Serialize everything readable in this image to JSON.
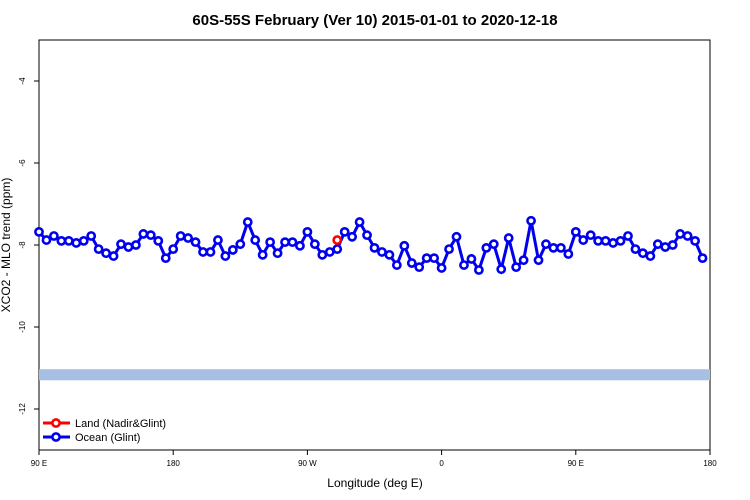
{
  "chart_data": {
    "type": "line",
    "title": "60S-55S February (Ver 10)   2015-01-01 to 2020-12-18",
    "xlabel": "Longitude (deg E)",
    "ylabel": "XCO2 - MLO trend (ppm)",
    "xlim": [
      90,
      540
    ],
    "ylim": [
      -13,
      -3
    ],
    "xticks": [
      {
        "value": 90,
        "label": "90 E"
      },
      180,
      {
        "value": 270,
        "label": "90 W"
      },
      {
        "value": 360,
        "label": "0"
      },
      {
        "value": 450,
        "label": "90 E"
      },
      180
    ],
    "yticks": [
      -12,
      -10,
      -8,
      -6,
      -4
    ],
    "band": {
      "ylim": [
        -11.3,
        -11.03
      ],
      "color": "#a7bfe2"
    },
    "legend": "bottom-left",
    "series": [
      {
        "name": "Land (Nadir&Glint)",
        "color": "#ff0000",
        "x": [
          290
        ],
        "values": [
          -7.88
        ]
      },
      {
        "name": "Ocean (Glint)",
        "color": "#0000ee",
        "x": [
          90,
          95,
          100,
          105,
          110,
          115,
          120,
          125,
          130,
          135,
          140,
          145,
          150,
          155,
          160,
          165,
          170,
          175,
          180,
          185,
          190,
          195,
          200,
          205,
          210,
          215,
          220,
          225,
          230,
          235,
          240,
          245,
          250,
          255,
          260,
          265,
          270,
          275,
          280,
          285,
          290,
          295,
          300,
          305,
          310,
          315,
          320,
          325,
          330,
          335,
          340,
          345,
          350,
          355,
          360,
          365,
          370,
          375,
          380,
          385,
          390,
          395,
          400,
          405,
          410,
          415,
          420,
          425,
          430,
          435,
          440,
          445,
          450,
          455,
          460,
          465,
          470,
          475,
          480,
          485,
          490,
          495,
          500,
          505,
          510,
          515,
          520,
          525,
          530,
          535
        ],
        "values": [
          -7.68,
          -7.88,
          -7.78,
          -7.9,
          -7.9,
          -7.95,
          -7.9,
          -7.78,
          -8.1,
          -8.2,
          -8.27,
          -7.98,
          -8.05,
          -8.0,
          -7.73,
          -7.76,
          -7.9,
          -8.32,
          -8.1,
          -7.78,
          -7.83,
          -7.93,
          -8.17,
          -8.17,
          -7.88,
          -8.27,
          -8.12,
          -7.98,
          -7.44,
          -7.88,
          -8.24,
          -7.93,
          -8.2,
          -7.93,
          -7.93,
          -8.02,
          -7.68,
          -7.98,
          -8.24,
          -8.17,
          -8.1,
          -7.68,
          -7.8,
          -7.44,
          -7.76,
          -8.07,
          -8.17,
          -8.24,
          -8.49,
          -8.02,
          -8.44,
          -8.54,
          -8.32,
          -8.32,
          -8.56,
          -8.1,
          -7.8,
          -8.49,
          -8.34,
          -8.61,
          -8.07,
          -7.98,
          -8.59,
          -7.83,
          -8.54,
          -8.37,
          -7.41,
          -8.37,
          -7.98,
          -8.07,
          -8.07,
          -8.22,
          -7.68,
          -7.88,
          -7.76,
          -7.9,
          -7.9,
          -7.95,
          -7.9,
          -7.78,
          -8.1,
          -8.2,
          -8.27,
          -7.98,
          -8.05,
          -8.0,
          -7.73,
          -7.78,
          -7.9,
          -8.32
        ]
      }
    ]
  }
}
